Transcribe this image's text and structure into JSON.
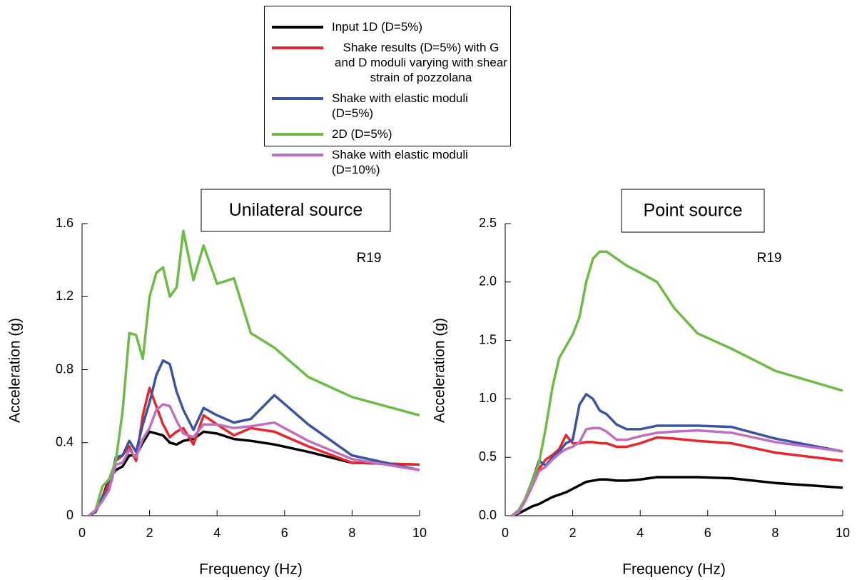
{
  "chart_data": [
    {
      "type": "line",
      "title": "Unilateral source",
      "annotation": "R19",
      "xlabel": "Frequency (Hz)",
      "ylabel": "Acceleration (g)",
      "x": [
        0.2,
        0.4,
        0.6,
        0.8,
        1.0,
        1.2,
        1.4,
        1.6,
        1.8,
        2.0,
        2.2,
        2.4,
        2.6,
        2.8,
        3.0,
        3.3,
        3.6,
        4.0,
        4.5,
        5.0,
        5.7,
        6.7,
        8.0,
        10
      ],
      "xlim": [
        0,
        10
      ],
      "xticks": [
        0,
        2,
        4,
        6,
        8,
        10
      ],
      "ylim": [
        0,
        1.6
      ],
      "yticks": [
        0,
        0.4,
        0.8,
        1.2,
        1.6
      ],
      "series": [
        {
          "name": "Input 1D (D=5%)",
          "color": "#000000",
          "values": [
            0,
            0.02,
            0.1,
            0.2,
            0.25,
            0.27,
            0.33,
            0.33,
            0.4,
            0.46,
            0.45,
            0.44,
            0.4,
            0.39,
            0.41,
            0.42,
            0.46,
            0.45,
            0.42,
            0.41,
            0.39,
            0.35,
            0.29,
            0.28
          ]
        },
        {
          "name": "Shake results (D=5%) with G and D moduli varying with shear strain of pozzolana",
          "color": "#e8262b",
          "values": [
            0,
            0.03,
            0.1,
            0.18,
            0.3,
            0.33,
            0.38,
            0.3,
            0.55,
            0.7,
            0.6,
            0.5,
            0.43,
            0.46,
            0.48,
            0.39,
            0.55,
            0.5,
            0.44,
            0.48,
            0.46,
            0.38,
            0.29,
            0.28
          ]
        },
        {
          "name": "Shake with elastic moduli (D=5%)",
          "color": "#3a53a4",
          "values": [
            0,
            0.02,
            0.1,
            0.15,
            0.32,
            0.33,
            0.41,
            0.35,
            0.5,
            0.62,
            0.77,
            0.85,
            0.83,
            0.68,
            0.58,
            0.47,
            0.59,
            0.55,
            0.51,
            0.53,
            0.66,
            0.5,
            0.33,
            0.25
          ]
        },
        {
          "name": "2D (D=5%)",
          "color": "#6cbd45",
          "values": [
            0,
            0.03,
            0.16,
            0.2,
            0.3,
            0.57,
            1.0,
            0.99,
            0.86,
            1.2,
            1.33,
            1.36,
            1.2,
            1.25,
            1.56,
            1.29,
            1.48,
            1.27,
            1.3,
            1.0,
            0.92,
            0.76,
            0.65,
            0.55
          ]
        },
        {
          "name": "Shake with elastic moduli (D=10%)",
          "color": "#c06fc0",
          "values": [
            0,
            0.03,
            0.08,
            0.14,
            0.28,
            0.29,
            0.36,
            0.32,
            0.42,
            0.48,
            0.58,
            0.61,
            0.6,
            0.52,
            0.45,
            0.43,
            0.5,
            0.5,
            0.48,
            0.49,
            0.51,
            0.41,
            0.31,
            0.25
          ]
        }
      ]
    },
    {
      "type": "line",
      "title": "Point source",
      "annotation": "R19",
      "xlabel": "Frequency (Hz)",
      "ylabel": "Acceleration (g)",
      "x": [
        0.2,
        0.4,
        0.6,
        0.8,
        1.0,
        1.2,
        1.4,
        1.6,
        1.8,
        2.0,
        2.2,
        2.4,
        2.6,
        2.8,
        3.0,
        3.3,
        3.6,
        4.0,
        4.5,
        5.0,
        5.7,
        6.7,
        8.0,
        10
      ],
      "xlim": [
        0,
        10
      ],
      "xticks": [
        0,
        2,
        4,
        6,
        8,
        10
      ],
      "ylim": [
        0,
        2.5
      ],
      "yticks": [
        {
          "value": 0,
          "label": "0.0"
        },
        0.5,
        {
          "value": 1,
          "label": "1.0"
        },
        1.5,
        {
          "value": 2,
          "label": "2.0"
        },
        2.5
      ],
      "series": [
        {
          "color": "#000000",
          "values": [
            0,
            0.02,
            0.05,
            0.08,
            0.1,
            0.13,
            0.16,
            0.18,
            0.2,
            0.23,
            0.26,
            0.29,
            0.3,
            0.31,
            0.31,
            0.3,
            0.3,
            0.31,
            0.33,
            0.33,
            0.33,
            0.32,
            0.28,
            0.24
          ]
        },
        {
          "color": "#e8262b",
          "values": [
            0,
            0.04,
            0.15,
            0.3,
            0.4,
            0.48,
            0.52,
            0.57,
            0.69,
            0.62,
            0.62,
            0.63,
            0.63,
            0.62,
            0.62,
            0.59,
            0.59,
            0.62,
            0.67,
            0.66,
            0.64,
            0.62,
            0.54,
            0.47
          ]
        },
        {
          "color": "#3a53a4",
          "values": [
            0,
            0.03,
            0.15,
            0.3,
            0.47,
            0.43,
            0.5,
            0.55,
            0.62,
            0.65,
            0.95,
            1.04,
            1.0,
            0.9,
            0.87,
            0.78,
            0.74,
            0.74,
            0.77,
            0.77,
            0.77,
            0.76,
            0.66,
            0.55
          ]
        },
        {
          "color": "#6cbd45",
          "values": [
            0,
            0.05,
            0.15,
            0.3,
            0.45,
            0.75,
            1.1,
            1.35,
            1.45,
            1.55,
            1.7,
            2.0,
            2.2,
            2.26,
            2.26,
            2.2,
            2.14,
            2.08,
            2.0,
            1.78,
            1.56,
            1.43,
            1.24,
            1.07
          ]
        },
        {
          "color": "#c06fc0",
          "values": [
            0,
            0.03,
            0.13,
            0.25,
            0.38,
            0.42,
            0.48,
            0.53,
            0.57,
            0.59,
            0.63,
            0.74,
            0.75,
            0.75,
            0.72,
            0.65,
            0.65,
            0.68,
            0.71,
            0.72,
            0.73,
            0.71,
            0.63,
            0.55
          ]
        }
      ]
    }
  ]
}
